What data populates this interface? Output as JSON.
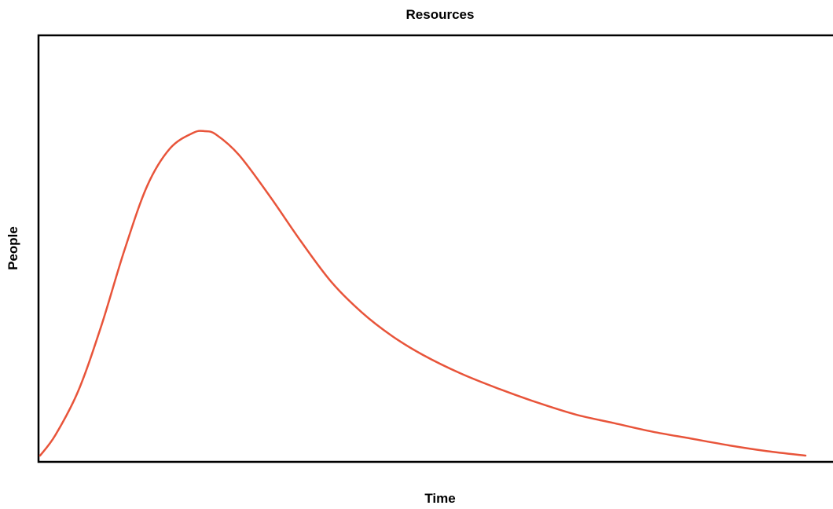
{
  "chart_data": {
    "type": "line",
    "title": "Resources",
    "xlabel": "Time",
    "ylabel": "People",
    "grid": false,
    "legend": "none",
    "x_ticks": [],
    "y_ticks": [],
    "xlim": [
      0,
      100
    ],
    "ylim": [
      0,
      100
    ],
    "series": [
      {
        "color": "#e8543a",
        "x": [
          0,
          2,
          5,
          8,
          11,
          14,
          17,
          20,
          21.5,
          23,
          26,
          30,
          34,
          38,
          42,
          46,
          50,
          55,
          60,
          65,
          70,
          75,
          80,
          85,
          90,
          95,
          100
        ],
        "y": [
          0,
          6,
          19,
          38,
          60,
          79,
          90,
          94.5,
          95,
          94,
          88,
          76,
          63,
          51,
          42,
          35,
          29.5,
          24,
          19.5,
          15.5,
          12,
          9.5,
          7,
          5,
          3,
          1.3,
          0
        ]
      }
    ]
  }
}
